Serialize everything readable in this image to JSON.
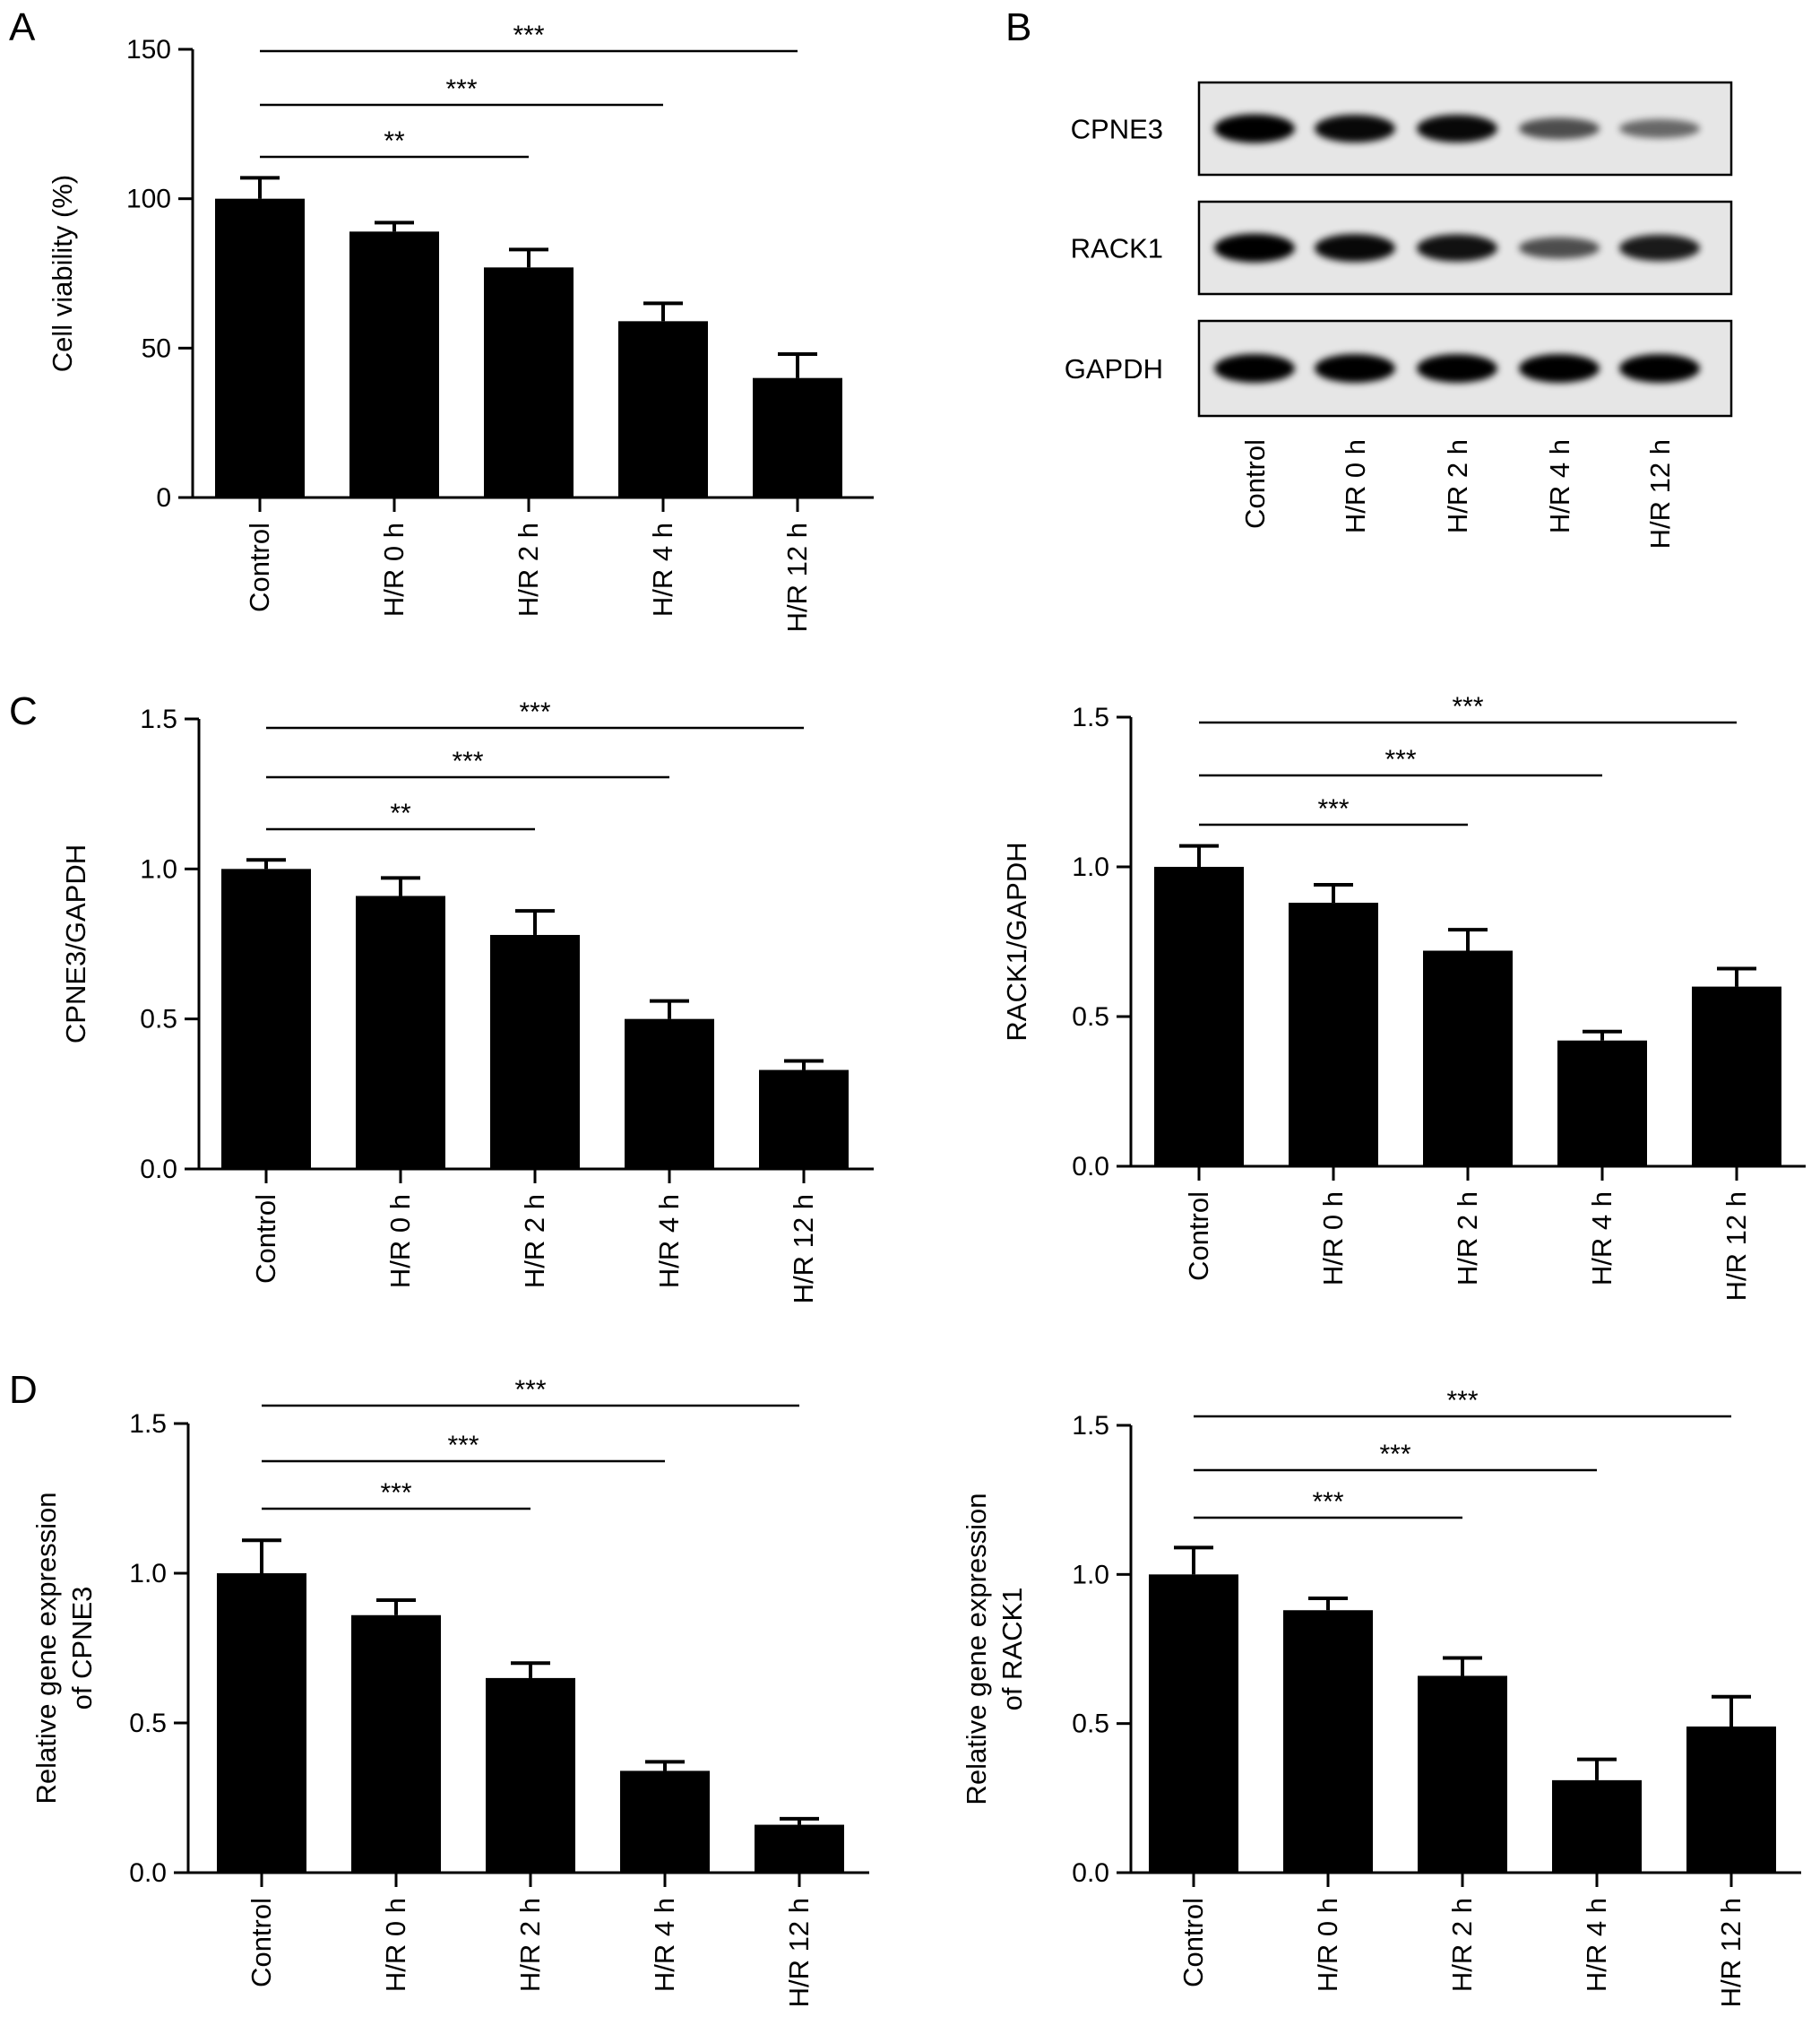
{
  "panel_labels": [
    "A",
    "B",
    "C",
    "D"
  ],
  "chart_data": [
    {
      "id": "A",
      "type": "bar",
      "categories": [
        "Control",
        "H/R 0 h",
        "H/R 2 h",
        "H/R 4 h",
        "H/R 12 h"
      ],
      "values": [
        100,
        89,
        77,
        59,
        40
      ],
      "errors": [
        7,
        3,
        6,
        6,
        8
      ],
      "ylabel": "Cell viability (%)",
      "ylim": [
        0,
        150
      ],
      "yticks": [
        0,
        50,
        100,
        150
      ],
      "ytick_labels": [
        "0",
        "50",
        "100",
        "150"
      ],
      "significance": [
        {
          "from": 0,
          "to": 2,
          "label": "**"
        },
        {
          "from": 0,
          "to": 3,
          "label": "***"
        },
        {
          "from": 0,
          "to": 4,
          "label": "***"
        }
      ]
    },
    {
      "id": "C-left",
      "type": "bar",
      "categories": [
        "Control",
        "H/R 0 h",
        "H/R 2 h",
        "H/R 4 h",
        "H/R 12 h"
      ],
      "values": [
        1.0,
        0.91,
        0.78,
        0.5,
        0.33
      ],
      "errors": [
        0.03,
        0.06,
        0.08,
        0.06,
        0.03
      ],
      "ylabel": "CPNE3/GAPDH",
      "ylim": [
        0,
        1.5
      ],
      "yticks": [
        0,
        0.5,
        1.0,
        1.5
      ],
      "ytick_labels": [
        "0.0",
        "0.5",
        "1.0",
        "1.5"
      ],
      "significance": [
        {
          "from": 0,
          "to": 2,
          "label": "**"
        },
        {
          "from": 0,
          "to": 3,
          "label": "***"
        },
        {
          "from": 0,
          "to": 4,
          "label": "***"
        }
      ]
    },
    {
      "id": "C-right",
      "type": "bar",
      "categories": [
        "Control",
        "H/R 0 h",
        "H/R 2 h",
        "H/R 4 h",
        "H/R 12 h"
      ],
      "values": [
        1.0,
        0.88,
        0.72,
        0.42,
        0.6
      ],
      "errors": [
        0.07,
        0.06,
        0.07,
        0.03,
        0.06
      ],
      "ylabel": "RACK1/GAPDH",
      "ylim": [
        0,
        1.5
      ],
      "yticks": [
        0,
        0.5,
        1.0,
        1.5
      ],
      "ytick_labels": [
        "0.0",
        "0.5",
        "1.0",
        "1.5"
      ],
      "significance": [
        {
          "from": 0,
          "to": 2,
          "label": "***"
        },
        {
          "from": 0,
          "to": 3,
          "label": "***"
        },
        {
          "from": 0,
          "to": 4,
          "label": "***"
        }
      ]
    },
    {
      "id": "D-left",
      "type": "bar",
      "categories": [
        "Control",
        "H/R 0 h",
        "H/R 2 h",
        "H/R 4 h",
        "H/R 12 h"
      ],
      "values": [
        1.0,
        0.86,
        0.65,
        0.34,
        0.16
      ],
      "errors": [
        0.11,
        0.05,
        0.05,
        0.03,
        0.02
      ],
      "ylabel": [
        "Relative gene expression",
        "of CPNE3"
      ],
      "ylim": [
        0,
        1.5
      ],
      "yticks": [
        0,
        0.5,
        1.0,
        1.5
      ],
      "ytick_labels": [
        "0.0",
        "0.5",
        "1.0",
        "1.5"
      ],
      "significance": [
        {
          "from": 0,
          "to": 2,
          "label": "***"
        },
        {
          "from": 0,
          "to": 3,
          "label": "***"
        },
        {
          "from": 0,
          "to": 4,
          "label": "***"
        }
      ]
    },
    {
      "id": "D-right",
      "type": "bar",
      "categories": [
        "Control",
        "H/R 0 h",
        "H/R 2 h",
        "H/R 4 h",
        "H/R 12 h"
      ],
      "values": [
        1.0,
        0.88,
        0.66,
        0.31,
        0.49
      ],
      "errors": [
        0.09,
        0.04,
        0.06,
        0.07,
        0.1
      ],
      "ylabel": [
        "Relative gene expression",
        "of RACK1"
      ],
      "ylim": [
        0,
        1.5
      ],
      "yticks": [
        0,
        0.5,
        1.0,
        1.5
      ],
      "ytick_labels": [
        "0.0",
        "0.5",
        "1.0",
        "1.5"
      ],
      "significance": [
        {
          "from": 0,
          "to": 2,
          "label": "***"
        },
        {
          "from": 0,
          "to": 3,
          "label": "***"
        },
        {
          "from": 0,
          "to": 4,
          "label": "***"
        }
      ]
    }
  ],
  "blot": {
    "rows": [
      {
        "label": "CPNE3",
        "intensities": [
          1.0,
          0.95,
          0.95,
          0.55,
          0.4
        ]
      },
      {
        "label": "RACK1",
        "intensities": [
          1.0,
          0.95,
          0.9,
          0.55,
          0.85
        ]
      },
      {
        "label": "GAPDH",
        "intensities": [
          1.0,
          1.0,
          1.0,
          1.0,
          1.0
        ]
      }
    ],
    "lanes": [
      "Control",
      "H/R 0 h",
      "H/R 2 h",
      "H/R 4 h",
      "H/R 12 h"
    ],
    "background_color": "#e6e6e6",
    "band_color": "#000000"
  }
}
